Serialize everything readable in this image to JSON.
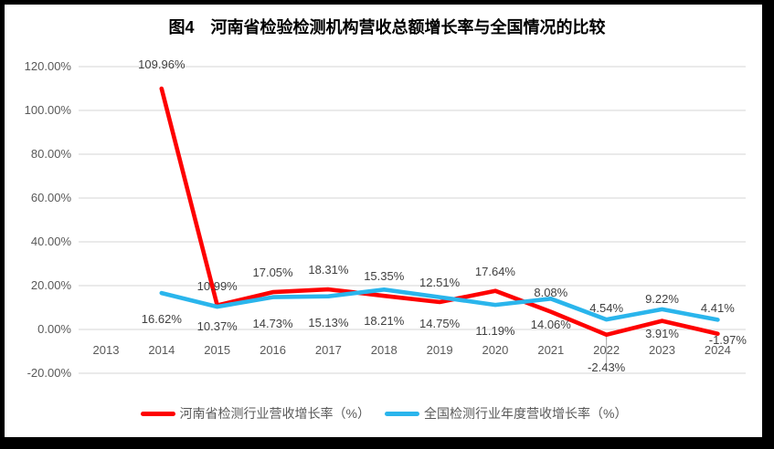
{
  "title": "图4　河南省检验检测机构营收总额增长率与全国情况的比较",
  "chart_data": {
    "type": "line",
    "categories": [
      "2013",
      "2014",
      "2015",
      "2016",
      "2017",
      "2018",
      "2019",
      "2020",
      "2021",
      "2022",
      "2023",
      "2024"
    ],
    "series": [
      {
        "name": "河南省检测行业营收增长率（%）",
        "color": "#fe0000",
        "values": [
          null,
          109.96,
          10.99,
          17.05,
          18.31,
          15.35,
          12.51,
          17.64,
          8.08,
          -2.43,
          3.91,
          -1.97
        ],
        "labels": [
          "",
          "109.96%",
          "10.99%",
          "17.05%",
          "18.31%",
          "15.35%",
          "12.51%",
          "17.64%",
          "8.08%",
          "-2.43%",
          "3.91%",
          "-1.97%"
        ]
      },
      {
        "name": "全国检测行业年度营收增长率（%）",
        "color": "#2ab5ec",
        "values": [
          null,
          16.62,
          10.37,
          14.73,
          15.13,
          18.21,
          14.75,
          11.19,
          14.06,
          4.54,
          9.22,
          4.41
        ],
        "labels": [
          "",
          "16.62%",
          "10.37%",
          "14.73%",
          "15.13%",
          "18.21%",
          "14.75%",
          "11.19%",
          "14.06%",
          "4.54%",
          "9.22%",
          "4.41%"
        ]
      }
    ],
    "y_axis": {
      "ticks": [
        "120.00%",
        "100.00%",
        "80.00%",
        "60.00%",
        "40.00%",
        "20.00%",
        "0.00%",
        "-20.00%"
      ],
      "tick_values": [
        120,
        100,
        80,
        60,
        40,
        20,
        0,
        -20
      ],
      "range": [
        -20,
        120
      ]
    },
    "x_axis": {
      "label": ""
    },
    "grid": true,
    "gridline_color": "#dedede",
    "frame_color": "#000000",
    "legend_position": "bottom"
  }
}
